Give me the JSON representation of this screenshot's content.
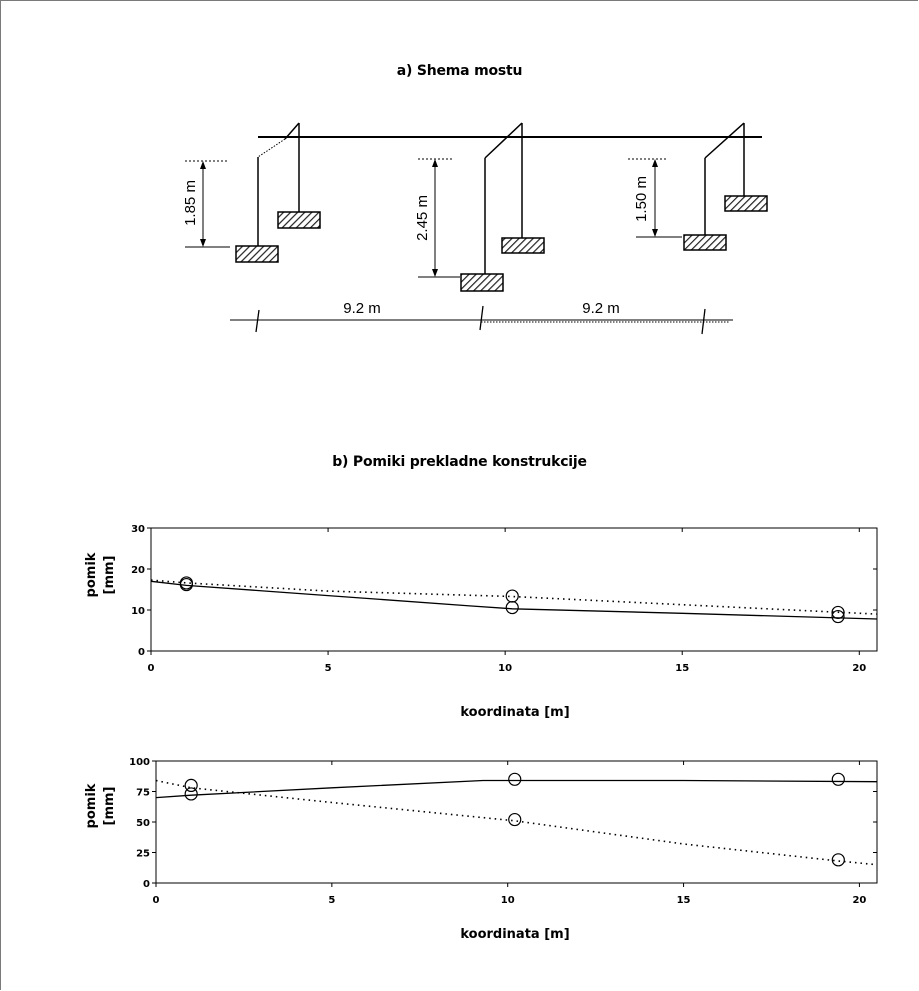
{
  "schema": {
    "title": "a) Shema mostu",
    "heights": [
      "1.85 m",
      "2.45 m",
      "1.50 m"
    ],
    "spans": [
      "9.2 m",
      "9.2 m"
    ]
  },
  "section_b_title": "b) Pomiki prekladne konstrukcije",
  "chart_data": [
    {
      "type": "line",
      "xlabel": "koordinata [m]",
      "ylabel": "pomik [mm]",
      "xlim": [
        0,
        20.5
      ],
      "ylim": [
        0,
        30
      ],
      "xticks": [
        "0",
        "5",
        "10",
        "15",
        "20"
      ],
      "yticks": [
        "0",
        "10",
        "20",
        "30"
      ],
      "grid": false,
      "series": [
        {
          "style": "solid",
          "x": [
            0,
            1.0,
            5,
            9.0,
            10.2,
            15,
            20.5
          ],
          "y": [
            17,
            16,
            13.5,
            11,
            10.3,
            9.2,
            7.8
          ]
        },
        {
          "style": "dotted",
          "x": [
            0,
            1.0,
            5,
            10.2,
            15,
            20.5
          ],
          "y": [
            17.3,
            16.6,
            14.6,
            13.3,
            11.3,
            9.0
          ]
        }
      ],
      "markers": {
        "x": [
          1.0,
          1.0,
          10.2,
          10.2,
          19.4,
          19.4
        ],
        "y": [
          16.2,
          16.6,
          10.6,
          13.4,
          8.4,
          9.4
        ]
      }
    },
    {
      "type": "line",
      "xlabel": "koordinata [m]",
      "ylabel": "pomik [mm]",
      "xlim": [
        0,
        20.5
      ],
      "ylim": [
        0,
        100
      ],
      "xticks": [
        "0",
        "5",
        "10",
        "15",
        "20"
      ],
      "yticks": [
        "0",
        "25",
        "50",
        "75",
        "100"
      ],
      "grid": false,
      "series": [
        {
          "style": "solid",
          "x": [
            0,
            1.0,
            5,
            9.3,
            10.2,
            15,
            20.5
          ],
          "y": [
            70,
            72,
            78,
            84,
            84,
            84,
            83
          ]
        },
        {
          "style": "dotted",
          "x": [
            0,
            1.0,
            5,
            10.2,
            15,
            19.4,
            20.5
          ],
          "y": [
            84,
            78,
            66,
            51,
            32,
            18,
            15
          ]
        }
      ],
      "markers": {
        "x": [
          1.0,
          1.0,
          10.2,
          10.2,
          19.4,
          19.4
        ],
        "y": [
          80,
          73,
          85,
          52,
          85,
          19
        ]
      }
    }
  ]
}
